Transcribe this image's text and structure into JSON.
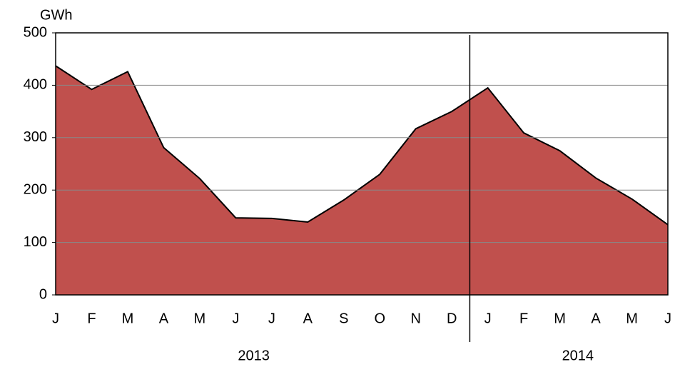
{
  "chart_data": {
    "type": "area",
    "y_label": "GWh",
    "categories": [
      "J",
      "F",
      "M",
      "A",
      "M",
      "J",
      "J",
      "A",
      "S",
      "O",
      "N",
      "D",
      "J",
      "F",
      "M",
      "A",
      "M",
      "J"
    ],
    "x_groups": [
      {
        "label": "2013",
        "count": 12
      },
      {
        "label": "2014",
        "count": 6
      }
    ],
    "series": [
      {
        "name": "GWh",
        "color": "#c0504d",
        "values": [
          437,
          392,
          426,
          281,
          222,
          147,
          146,
          139,
          181,
          230,
          317,
          350,
          395,
          309,
          275,
          223,
          183,
          134
        ]
      }
    ],
    "ylim": [
      0,
      500
    ],
    "yticks": [
      0,
      100,
      200,
      300,
      400,
      500
    ],
    "grid": true
  }
}
